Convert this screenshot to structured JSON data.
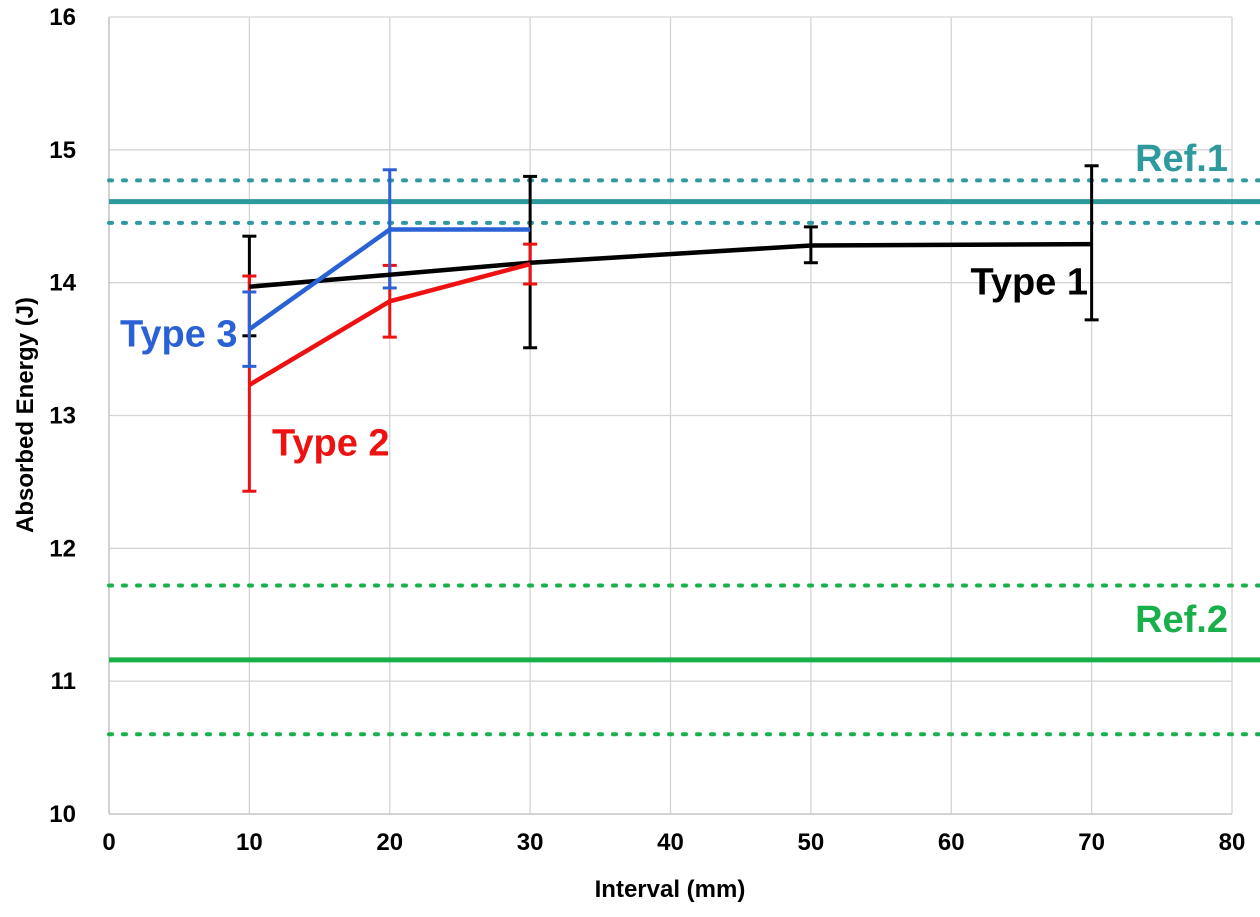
{
  "chart_data": {
    "type": "line",
    "title": "",
    "xlabel": "Interval (mm)",
    "ylabel": "Absorbed Energy (J)",
    "xlim": [
      0,
      80
    ],
    "ylim": [
      10,
      16
    ],
    "xticks": [
      0,
      10,
      20,
      30,
      40,
      50,
      60,
      70,
      80
    ],
    "yticks": [
      10,
      11,
      12,
      13,
      14,
      15,
      16
    ],
    "grid": true,
    "series": [
      {
        "name": "Type 1",
        "label": "Type 1",
        "color": "#000000",
        "x": [
          10,
          20,
          30,
          50,
          70
        ],
        "y": [
          13.97,
          14.06,
          14.15,
          14.28,
          14.29
        ],
        "err_low": [
          13.6,
          null,
          13.51,
          14.15,
          13.72
        ],
        "err_high": [
          14.35,
          null,
          14.8,
          14.42,
          14.88
        ]
      },
      {
        "name": "Type 2",
        "label": "Type 2",
        "color": "#ee1111",
        "x": [
          10,
          20,
          30
        ],
        "y": [
          13.23,
          13.86,
          14.14
        ],
        "err_low": [
          12.43,
          13.59,
          13.99
        ],
        "err_high": [
          14.05,
          14.13,
          14.29
        ]
      },
      {
        "name": "Type 3",
        "label": "Type 3",
        "color": "#2a62d6",
        "x": [
          10,
          20,
          30
        ],
        "y": [
          13.65,
          14.4,
          14.4
        ],
        "err_low": [
          13.37,
          13.96,
          null
        ],
        "err_high": [
          13.93,
          14.85,
          null
        ]
      }
    ],
    "reference_lines": [
      {
        "name": "Ref.1",
        "label": "Ref.1",
        "color": "#2e9a9e",
        "value": 14.61,
        "lower": 14.45,
        "upper": 14.77
      },
      {
        "name": "Ref.2",
        "label": "Ref.2",
        "color": "#19b04b",
        "value": 11.16,
        "lower": 10.6,
        "upper": 11.72
      }
    ]
  }
}
